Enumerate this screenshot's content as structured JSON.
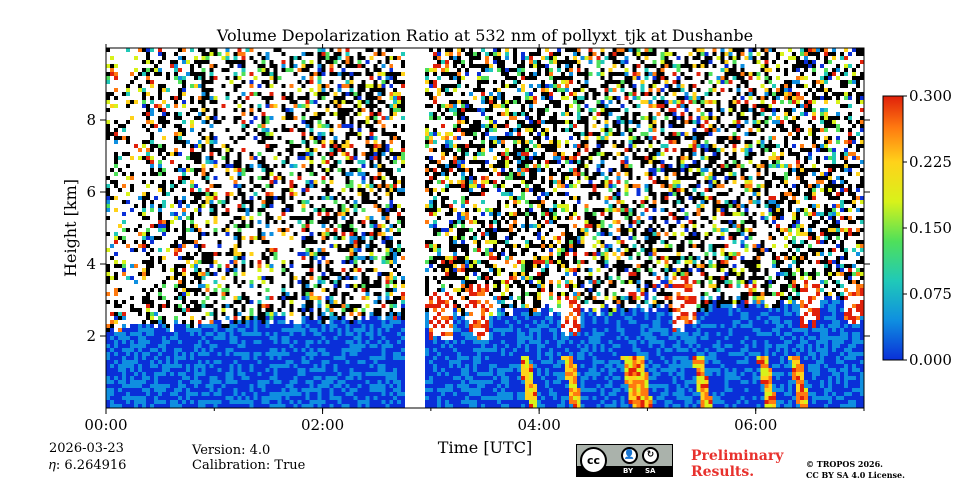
{
  "chart_data": {
    "type": "heatmap",
    "title": "Volume Depolarization Ratio at 532 nm of pollyxt_tjk at Dushanbe",
    "xlabel": "Time [UTC]",
    "ylabel": "Height [km]",
    "x_ticks": [
      "00:00",
      "02:00",
      "04:00",
      "06:00"
    ],
    "x_tick_hours": [
      0,
      2,
      4,
      6
    ],
    "xlim_hours": [
      0,
      7
    ],
    "y_ticks": [
      "2",
      "4",
      "6",
      "8"
    ],
    "y_tick_values": [
      2,
      4,
      6,
      8
    ],
    "ylim_km": [
      0,
      10
    ],
    "colorbar": {
      "ticks": [
        "0.000",
        "0.075",
        "0.150",
        "0.225",
        "0.300"
      ],
      "tick_values": [
        0.0,
        0.075,
        0.15,
        0.225,
        0.3
      ],
      "range": [
        0.0,
        0.3
      ],
      "colormap": [
        "#0a2fd8",
        "#0f8fe0",
        "#20c9b8",
        "#4fe05a",
        "#d8f21a",
        "#ffd21a",
        "#ff7a10",
        "#e0200a"
      ]
    },
    "data_gap_hours": [
      2.75,
      2.95
    ],
    "features": {
      "boundary_layer_top_km": [
        2.2,
        3.0
      ],
      "boundary_layer_value": 0.02,
      "high_depol_plumes_hours": [
        3.1,
        3.45,
        4.3,
        5.35,
        6.5,
        6.9
      ],
      "high_depol_plume_top_km": [
        3.2,
        3.4,
        3.0,
        3.7,
        3.6,
        3.4
      ],
      "falling_streaks_hours": [
        3.95,
        4.35,
        4.9,
        5.0,
        5.55,
        6.15,
        6.45
      ]
    }
  },
  "meta": {
    "date": "2026-03-23",
    "eta": "𝜂: 6.264916",
    "version": "Version: 4.0",
    "calibration": "Calibration: True"
  },
  "footer": {
    "preliminary_line1": "Preliminary",
    "preliminary_line2": "Results.",
    "license_line1": "© TROPOS 2026.",
    "license_line2": "CC BY SA 4.0 License.",
    "cc_badge": "cc",
    "cc_by": "BY",
    "cc_sa": "SA"
  }
}
